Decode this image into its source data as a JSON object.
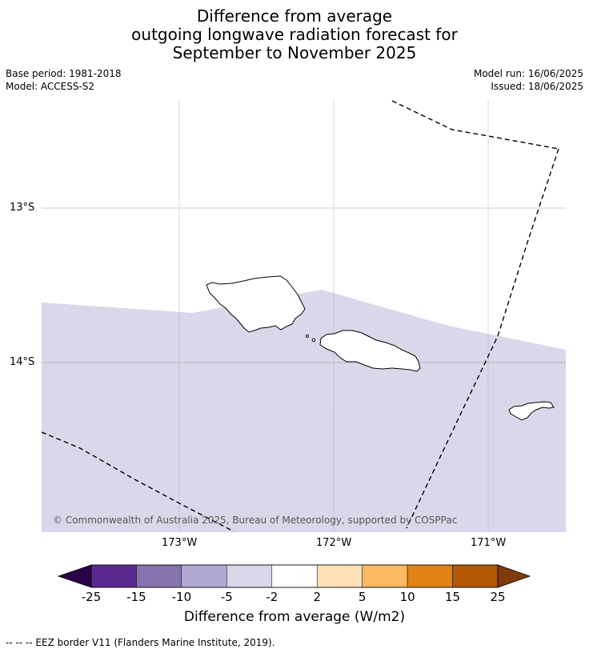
{
  "title": {
    "line1": "Difference from average",
    "line2": "outgoing longwave radiation forecast for",
    "line3": "September to November 2025"
  },
  "meta": {
    "base_period": "Base period: 1981-2018",
    "model": "Model: ACCESS-S2",
    "model_run": "Model run: 16/06/2025",
    "issued": "Issued: 18/06/2025"
  },
  "map": {
    "lat_labels": [
      "13°S",
      "14°S"
    ],
    "lon_labels": [
      "173°W",
      "172°W",
      "171°W"
    ],
    "lon_values": [
      -173,
      -172,
      -171
    ],
    "lat_values": [
      -13,
      -14
    ],
    "extent": {
      "lon_min": -173.9,
      "lon_max": -170.5,
      "lat_min": -15.1,
      "lat_max": -12.3
    },
    "anomaly_fill_color": "#d8d8ea",
    "anomaly_category": "-5 to -2",
    "copyright": "© Commonwealth of Australia 2025, Bureau of Meteorology, supported by COSPPac"
  },
  "colorbar": {
    "ticks": [
      "-25",
      "-15",
      "-10",
      "-5",
      "-2",
      "2",
      "5",
      "10",
      "15",
      "25"
    ],
    "colors": [
      "#5b2a90",
      "#8573b0",
      "#b1a9d3",
      "#d8d8ea",
      "#ffffff",
      "#fde0b7",
      "#fdb863",
      "#e08214",
      "#b35806"
    ],
    "under_color": "#2d004b",
    "over_color": "#7f3b08",
    "label": "Difference from average (W/m2)"
  },
  "footnote": "--  --  -- EEZ border V11 (Flanders Marine Institute, 2019)."
}
